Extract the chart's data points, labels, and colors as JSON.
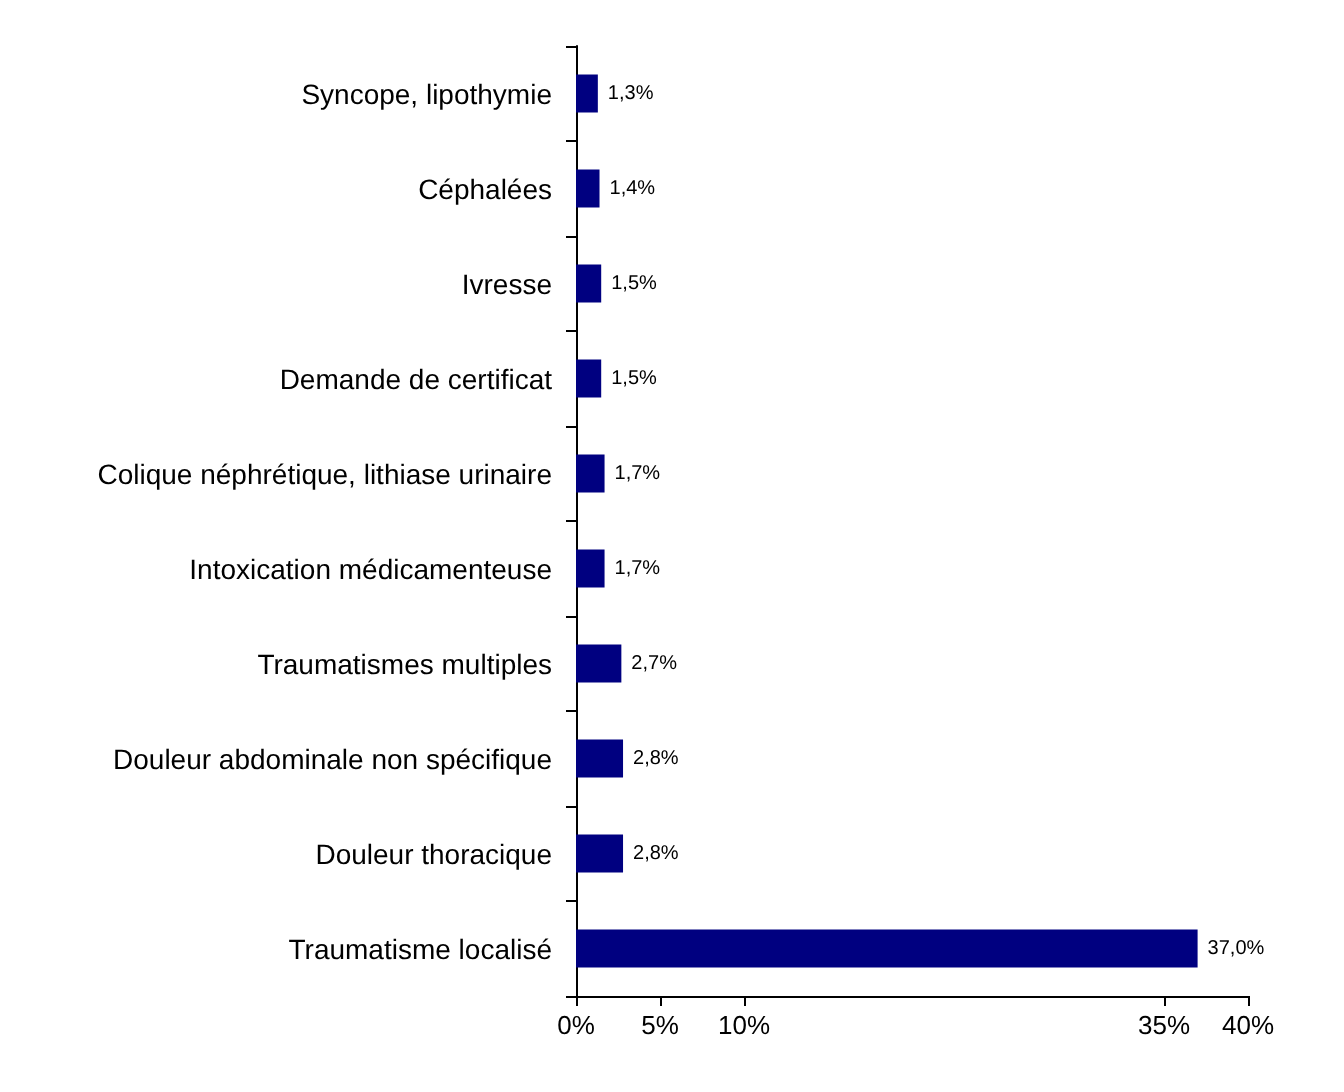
{
  "chart_data": {
    "type": "bar",
    "orientation": "horizontal",
    "categories": [
      "Syncope, lipothymie",
      "Céphalées",
      "Ivresse",
      "Demande de certificat",
      "Colique néphrétique, lithiase urinaire",
      "Intoxication médicamenteuse",
      "Traumatismes multiples",
      "Douleur abdominale non spécifique",
      "Douleur thoracique",
      "Traumatisme localisé"
    ],
    "values": [
      1.3,
      1.4,
      1.5,
      1.5,
      1.7,
      1.7,
      2.7,
      2.8,
      2.8,
      37.0
    ],
    "value_labels": [
      "1,3%",
      "1,4%",
      "1,5%",
      "1,5%",
      "1,7%",
      "1,7%",
      "2,7%",
      "2,8%",
      "2,8%",
      "37,0%"
    ],
    "color": "#000080",
    "xlim": [
      0,
      40
    ],
    "xticks": [
      {
        "value": 0,
        "label": "0%"
      },
      {
        "value": 5,
        "label": "5%"
      },
      {
        "value": 10,
        "label": "10%"
      },
      {
        "value": 35,
        "label": "35%"
      },
      {
        "value": 40,
        "label": "40%"
      }
    ]
  }
}
